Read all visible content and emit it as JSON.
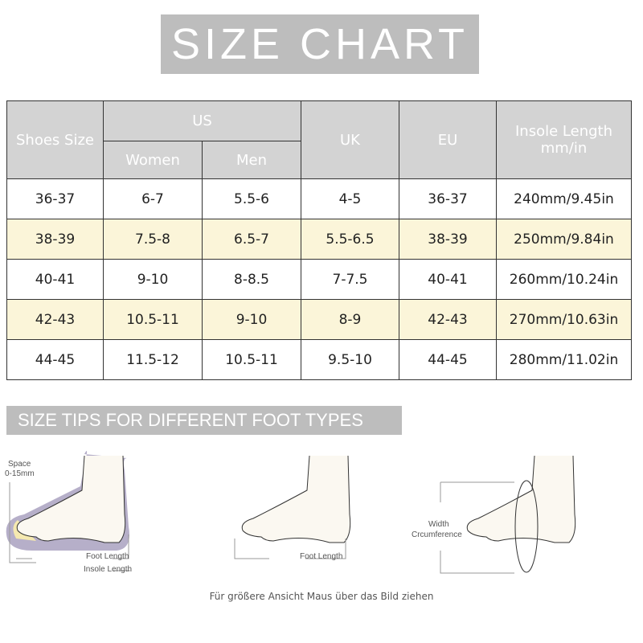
{
  "title": "SIZE CHART",
  "table": {
    "headers": {
      "shoes_size": "Shoes Size",
      "us": "US",
      "women": "Women",
      "men": "Men",
      "uk": "UK",
      "eu": "EU",
      "insole": "Insole Length mm/in"
    },
    "rows": [
      [
        "36-37",
        "6-7",
        "5.5-6",
        "4-5",
        "36-37",
        "240mm/9.45in"
      ],
      [
        "38-39",
        "7.5-8",
        "6.5-7",
        "5.5-6.5",
        "38-39",
        "250mm/9.84in"
      ],
      [
        "40-41",
        "9-10",
        "8-8.5",
        "7-7.5",
        "40-41",
        "260mm/10.24in"
      ],
      [
        "42-43",
        "10.5-11",
        "9-10",
        "8-9",
        "42-43",
        "270mm/10.63in"
      ],
      [
        "44-45",
        "11.5-12",
        "10.5-11",
        "9.5-10",
        "44-45",
        "280mm/11.02in"
      ]
    ],
    "highlight_color": "#fbf5d9",
    "header_color": "#d3d3d3"
  },
  "tips": {
    "banner": "SIZE TIPS FOR DIFFERENT FOOT TYPES",
    "space_label": "Space",
    "space_value": "0-15mm",
    "foot_length": "Foot Length",
    "insole_length": "Insole Length",
    "width": "Width",
    "circumference": "Crcumference"
  },
  "caption": "Für größere Ansicht Maus über das Bild ziehen"
}
